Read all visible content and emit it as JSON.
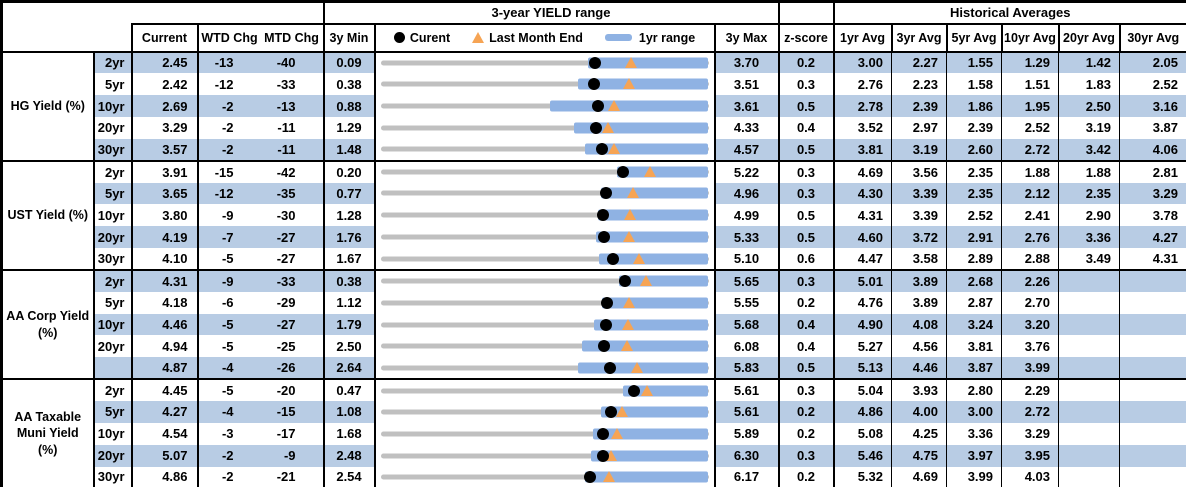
{
  "columns": {
    "current": "Current",
    "wtd_chg": "WTD Chg",
    "mtd_chg": "MTD Chg",
    "min3y": "3y Min",
    "max3y": "3y Max",
    "zscore": "z-score",
    "historical_title": "Historical Averages",
    "averages": [
      "1yr Avg",
      "3yr Avg",
      "5yr Avg",
      "10yr Avg",
      "20yr Avg",
      "30yr Avg"
    ]
  },
  "colors": {
    "stripe_blue": "#b8cce4",
    "range_bar_blue": "#8fb2e3",
    "range_bar_gray": "#c0c0c0",
    "marker_orange": "#f6a454",
    "marker_black": "#000000",
    "border_black": "#000000"
  },
  "chart_data": {
    "type": "table",
    "embedded_row_chart": "bullet-range (gray = 3y min-max range, blue = 1yr range, black dot = current, orange triangle = last month end)",
    "range_chart": {
      "title": "3-year YIELD range",
      "legend": {
        "current": "Curent",
        "last_month_end": "Last Month End",
        "range_bar": "1yr range"
      }
    },
    "groups": [
      {
        "label": "HG Yield (%)",
        "rows": [
          {
            "tenor": "2yr",
            "current": "2.45",
            "wtd": "-13",
            "mtd": "-40",
            "min": "0.09",
            "max": "3.70",
            "zscore": "0.2",
            "yr1_low": 2.37,
            "yr1_high": 3.7,
            "avgs": [
              "3.00",
              "2.27",
              "1.55",
              "1.29",
              "1.42",
              "2.05"
            ]
          },
          {
            "tenor": "5yr",
            "current": "2.42",
            "wtd": "-12",
            "mtd": "-33",
            "min": "0.38",
            "max": "3.51",
            "zscore": "0.3",
            "yr1_low": 2.26,
            "yr1_high": 3.51,
            "avgs": [
              "2.76",
              "2.23",
              "1.58",
              "1.51",
              "1.83",
              "2.52"
            ]
          },
          {
            "tenor": "10yr",
            "current": "2.69",
            "wtd": "-2",
            "mtd": "-13",
            "min": "0.88",
            "max": "3.61",
            "zscore": "0.5",
            "yr1_low": 2.29,
            "yr1_high": 3.61,
            "avgs": [
              "2.78",
              "2.39",
              "1.86",
              "1.95",
              "2.50",
              "3.16"
            ]
          },
          {
            "tenor": "20yr",
            "current": "3.29",
            "wtd": "-2",
            "mtd": "-11",
            "min": "1.29",
            "max": "4.33",
            "zscore": "0.4",
            "yr1_low": 3.08,
            "yr1_high": 4.33,
            "avgs": [
              "3.52",
              "2.97",
              "2.39",
              "2.52",
              "3.19",
              "3.87"
            ]
          },
          {
            "tenor": "30yr",
            "current": "3.57",
            "wtd": "-2",
            "mtd": "-11",
            "min": "1.48",
            "max": "4.57",
            "zscore": "0.5",
            "yr1_low": 3.41,
            "yr1_high": 4.57,
            "avgs": [
              "3.81",
              "3.19",
              "2.60",
              "2.72",
              "3.42",
              "4.06"
            ]
          }
        ]
      },
      {
        "label": "UST Yield (%)",
        "rows": [
          {
            "tenor": "2yr",
            "current": "3.91",
            "wtd": "-15",
            "mtd": "-42",
            "min": "0.20",
            "max": "5.22",
            "zscore": "0.3",
            "yr1_low": 3.82,
            "yr1_high": 5.22,
            "avgs": [
              "4.69",
              "3.56",
              "2.35",
              "1.88",
              "1.88",
              "2.81"
            ]
          },
          {
            "tenor": "5yr",
            "current": "3.65",
            "wtd": "-12",
            "mtd": "-35",
            "min": "0.77",
            "max": "4.96",
            "zscore": "0.3",
            "yr1_low": 3.59,
            "yr1_high": 4.96,
            "avgs": [
              "4.30",
              "3.39",
              "2.35",
              "2.12",
              "2.35",
              "3.29"
            ]
          },
          {
            "tenor": "10yr",
            "current": "3.80",
            "wtd": "-9",
            "mtd": "-30",
            "min": "1.28",
            "max": "4.99",
            "zscore": "0.5",
            "yr1_low": 3.74,
            "yr1_high": 4.99,
            "avgs": [
              "4.31",
              "3.39",
              "2.52",
              "2.41",
              "2.90",
              "3.78"
            ]
          },
          {
            "tenor": "20yr",
            "current": "4.19",
            "wtd": "-7",
            "mtd": "-27",
            "min": "1.76",
            "max": "5.33",
            "zscore": "0.5",
            "yr1_low": 4.11,
            "yr1_high": 5.33,
            "avgs": [
              "4.60",
              "3.72",
              "2.91",
              "2.76",
              "3.36",
              "4.27"
            ]
          },
          {
            "tenor": "30yr",
            "current": "4.10",
            "wtd": "-5",
            "mtd": "-27",
            "min": "1.67",
            "max": "5.10",
            "zscore": "0.6",
            "yr1_low": 3.95,
            "yr1_high": 5.1,
            "avgs": [
              "4.47",
              "3.58",
              "2.89",
              "2.88",
              "3.49",
              "4.31"
            ]
          }
        ]
      },
      {
        "label": "AA Corp Yield\n(%)",
        "rows": [
          {
            "tenor": "2yr",
            "current": "4.31",
            "wtd": "-9",
            "mtd": "-33",
            "min": "0.38",
            "max": "5.65",
            "zscore": "0.3",
            "yr1_low": 4.22,
            "yr1_high": 5.65,
            "avgs": [
              "5.01",
              "3.89",
              "2.68",
              "2.26",
              "",
              ""
            ]
          },
          {
            "tenor": "5yr",
            "current": "4.18",
            "wtd": "-6",
            "mtd": "-29",
            "min": "1.12",
            "max": "5.55",
            "zscore": "0.2",
            "yr1_low": 4.11,
            "yr1_high": 5.55,
            "avgs": [
              "4.76",
              "3.89",
              "2.87",
              "2.70",
              "",
              ""
            ]
          },
          {
            "tenor": "10yr",
            "current": "4.46",
            "wtd": "-5",
            "mtd": "-27",
            "min": "1.79",
            "max": "5.68",
            "zscore": "0.4",
            "yr1_low": 4.32,
            "yr1_high": 5.68,
            "avgs": [
              "4.90",
              "4.08",
              "3.24",
              "3.20",
              "",
              ""
            ]
          },
          {
            "tenor": "20yr",
            "current": "4.94",
            "wtd": "-5",
            "mtd": "-25",
            "min": "2.50",
            "max": "6.08",
            "zscore": "0.4",
            "yr1_low": 4.7,
            "yr1_high": 6.08,
            "avgs": [
              "5.27",
              "4.56",
              "3.81",
              "3.76",
              "",
              ""
            ]
          },
          {
            "tenor": "",
            "current": "4.87",
            "wtd": "-4",
            "mtd": "-26",
            "min": "2.64",
            "max": "5.83",
            "zscore": "0.5",
            "yr1_low": 4.56,
            "yr1_high": 5.83,
            "avgs": [
              "5.13",
              "4.46",
              "3.87",
              "3.99",
              "",
              ""
            ]
          }
        ]
      },
      {
        "label": "AA Taxable\nMuni Yield\n(%)",
        "rows": [
          {
            "tenor": "2yr",
            "current": "4.45",
            "wtd": "-5",
            "mtd": "-20",
            "min": "0.47",
            "max": "5.61",
            "zscore": "0.3",
            "yr1_low": 4.27,
            "yr1_high": 5.61,
            "avgs": [
              "5.04",
              "3.93",
              "2.80",
              "2.29",
              "",
              ""
            ]
          },
          {
            "tenor": "5yr",
            "current": "4.27",
            "wtd": "-4",
            "mtd": "-15",
            "min": "1.08",
            "max": "5.61",
            "zscore": "0.2",
            "yr1_low": 4.13,
            "yr1_high": 5.61,
            "avgs": [
              "4.86",
              "4.00",
              "3.00",
              "2.72",
              "",
              ""
            ]
          },
          {
            "tenor": "10yr",
            "current": "4.54",
            "wtd": "-3",
            "mtd": "-17",
            "min": "1.68",
            "max": "5.89",
            "zscore": "0.2",
            "yr1_low": 4.41,
            "yr1_high": 5.89,
            "avgs": [
              "5.08",
              "4.25",
              "3.36",
              "3.29",
              "",
              ""
            ]
          },
          {
            "tenor": "20yr",
            "current": "5.07",
            "wtd": "-2",
            "mtd": "-9",
            "min": "2.48",
            "max": "6.30",
            "zscore": "0.3",
            "yr1_low": 4.93,
            "yr1_high": 6.3,
            "avgs": [
              "5.46",
              "4.75",
              "3.97",
              "3.95",
              "",
              ""
            ]
          },
          {
            "tenor": "30yr",
            "current": "4.86",
            "wtd": "-2",
            "mtd": "-21",
            "min": "2.54",
            "max": "6.17",
            "zscore": "0.2",
            "yr1_low": 4.8,
            "yr1_high": 6.17,
            "avgs": [
              "5.32",
              "4.69",
              "3.99",
              "4.03",
              "",
              ""
            ]
          }
        ]
      }
    ]
  }
}
